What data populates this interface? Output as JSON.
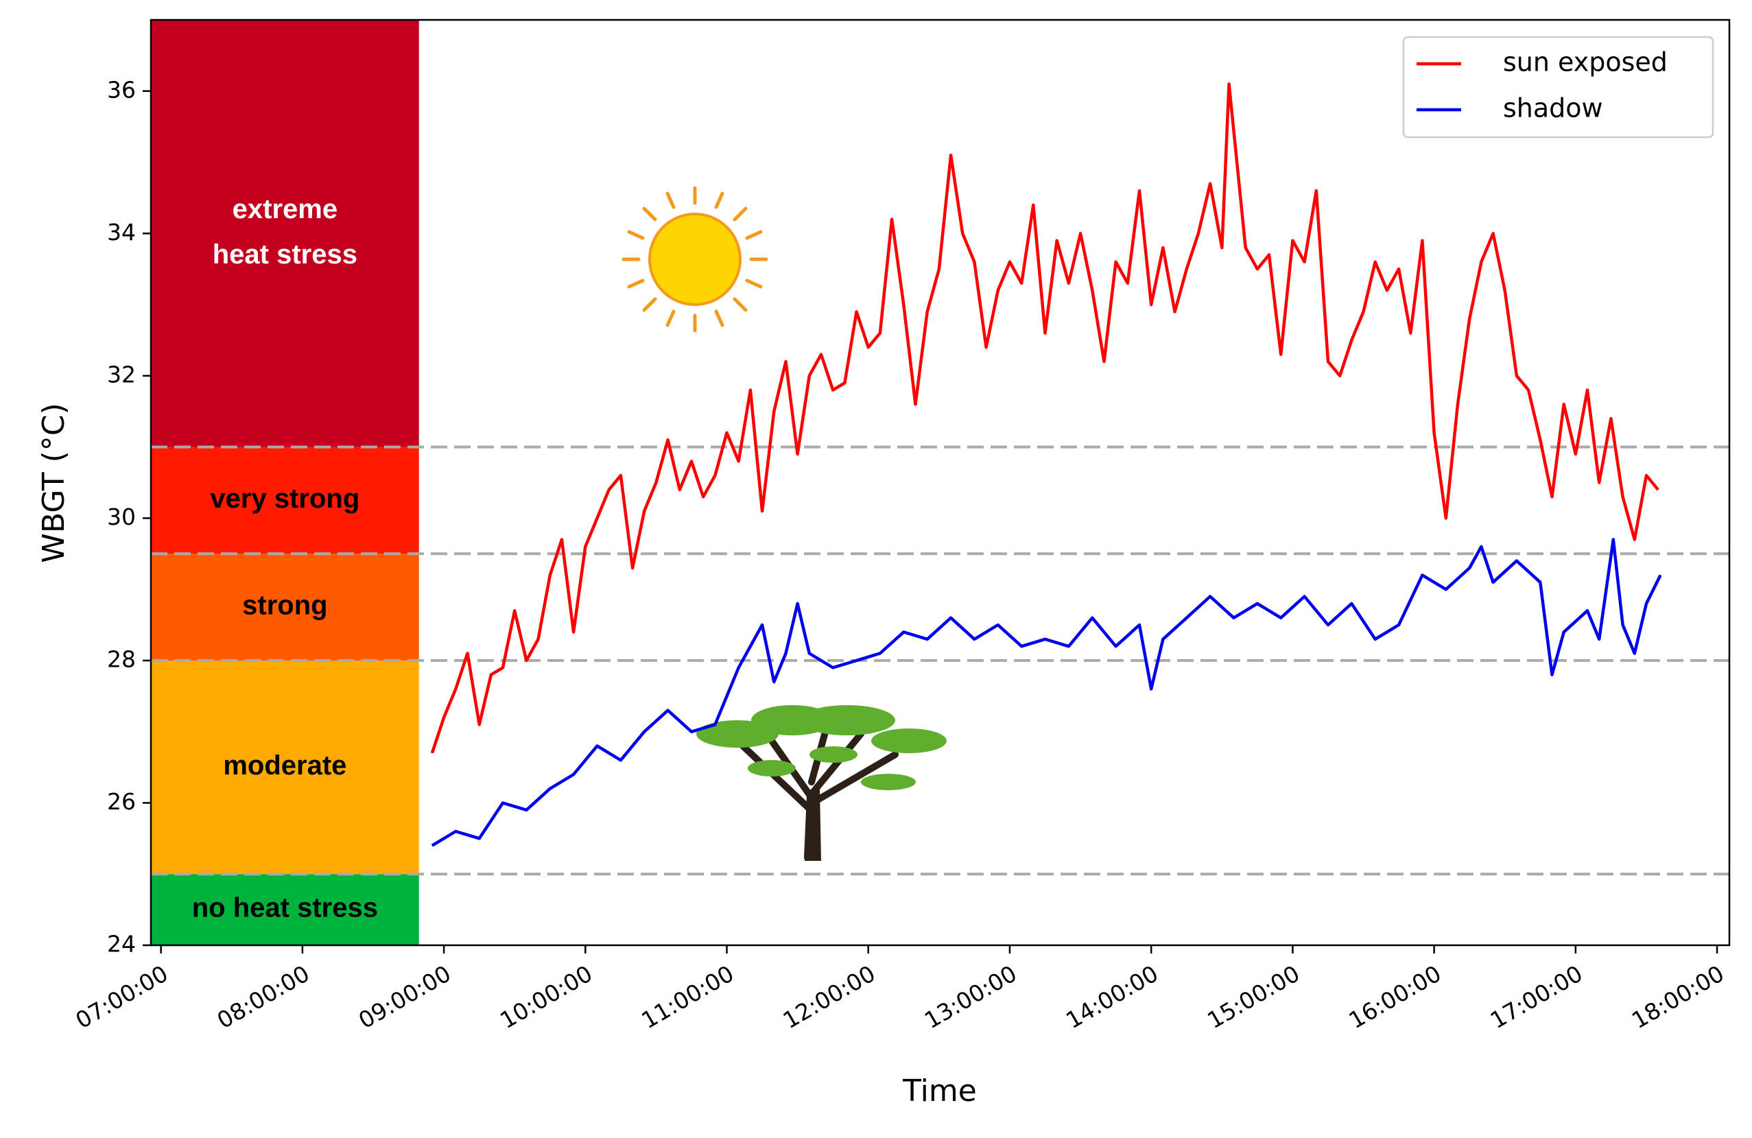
{
  "chart_data": {
    "type": "line",
    "xlabel": "Time",
    "ylabel": "WBGT (°C)",
    "xlim": [
      "06:55:44",
      "18:05:13"
    ],
    "xticks": [
      "07:00:00",
      "08:00:00",
      "09:00:00",
      "10:00:00",
      "11:00:00",
      "12:00:00",
      "13:00:00",
      "14:00:00",
      "15:00:00",
      "16:00:00",
      "17:00:00",
      "18:00:00"
    ],
    "ylim": [
      24,
      37
    ],
    "yticks": [
      24,
      26,
      28,
      30,
      32,
      34,
      36
    ],
    "legend": "upper right",
    "bands_end": "08:49:25",
    "bands": [
      {
        "label_lines": [
          "no heat stress"
        ],
        "lower": 24,
        "upper": 25,
        "color": "#00b33c",
        "text_color": "#000000"
      },
      {
        "label_lines": [
          "moderate"
        ],
        "lower": 25,
        "upper": 28,
        "color": "#ffaa00",
        "text_color": "#000000"
      },
      {
        "label_lines": [
          "strong"
        ],
        "lower": 28,
        "upper": 29.5,
        "color": "#ff5a00",
        "text_color": "#000000"
      },
      {
        "label_lines": [
          "very strong"
        ],
        "lower": 29.5,
        "upper": 31,
        "color": "#ff1a00",
        "text_color": "#000000"
      },
      {
        "label_lines": [
          "extreme",
          "heat stress"
        ],
        "lower": 31,
        "upper": 37,
        "color": "#c4001e",
        "text_color": "#ffffff"
      }
    ],
    "series": [
      {
        "name": "sun exposed",
        "color": "#ff0000",
        "x": [
          "08:55:00",
          "09:00:00",
          "09:05:00",
          "09:10:00",
          "09:15:00",
          "09:20:00",
          "09:25:00",
          "09:30:00",
          "09:35:00",
          "09:40:00",
          "09:45:00",
          "09:50:00",
          "09:55:00",
          "10:00:00",
          "10:05:00",
          "10:10:00",
          "10:15:00",
          "10:20:00",
          "10:25:00",
          "10:30:00",
          "10:35:00",
          "10:40:00",
          "10:45:00",
          "10:50:00",
          "10:55:00",
          "11:00:00",
          "11:05:00",
          "11:10:00",
          "11:15:00",
          "11:20:00",
          "11:25:00",
          "11:30:00",
          "11:35:00",
          "11:40:00",
          "11:45:00",
          "11:50:00",
          "11:55:00",
          "12:00:00",
          "12:05:00",
          "12:10:00",
          "12:15:00",
          "12:20:00",
          "12:25:00",
          "12:30:00",
          "12:35:00",
          "12:40:00",
          "12:45:00",
          "12:50:00",
          "12:55:00",
          "13:00:00",
          "13:05:00",
          "13:10:00",
          "13:15:00",
          "13:20:00",
          "13:25:00",
          "13:30:00",
          "13:35:00",
          "13:40:00",
          "13:45:00",
          "13:50:00",
          "13:55:00",
          "14:00:00",
          "14:05:00",
          "14:10:00",
          "14:15:00",
          "14:20:00",
          "14:25:00",
          "14:30:00",
          "14:33:00",
          "14:40:00",
          "14:45:00",
          "14:50:00",
          "14:55:00",
          "15:00:00",
          "15:05:00",
          "15:10:00",
          "15:15:00",
          "15:20:00",
          "15:25:00",
          "15:30:00",
          "15:35:00",
          "15:40:00",
          "15:45:00",
          "15:50:00",
          "15:55:00",
          "16:00:00",
          "16:05:00",
          "16:10:00",
          "16:15:00",
          "16:20:00",
          "16:25:00",
          "16:30:00",
          "16:35:00",
          "16:40:00",
          "16:45:00",
          "16:50:00",
          "16:55:00",
          "17:00:00",
          "17:05:00",
          "17:10:00",
          "17:15:00",
          "17:20:00",
          "17:25:00",
          "17:30:00",
          "17:35:00"
        ],
        "values": [
          26.7,
          27.2,
          27.6,
          28.1,
          27.1,
          27.8,
          27.9,
          28.7,
          28.0,
          28.3,
          29.2,
          29.7,
          28.4,
          29.6,
          30.0,
          30.4,
          30.6,
          29.3,
          30.1,
          30.5,
          31.1,
          30.4,
          30.8,
          30.3,
          30.6,
          31.2,
          30.8,
          31.8,
          30.1,
          31.5,
          32.2,
          30.9,
          32.0,
          32.3,
          31.8,
          31.9,
          32.9,
          32.4,
          32.6,
          34.2,
          33.0,
          31.6,
          32.9,
          33.5,
          35.1,
          34.0,
          33.6,
          32.4,
          33.2,
          33.6,
          33.3,
          34.4,
          32.6,
          33.9,
          33.3,
          34.0,
          33.2,
          32.2,
          33.6,
          33.3,
          34.6,
          33.0,
          33.8,
          32.9,
          33.5,
          34.0,
          34.7,
          33.8,
          36.1,
          33.8,
          33.5,
          33.7,
          32.3,
          33.9,
          33.6,
          34.6,
          32.2,
          32.0,
          32.5,
          32.9,
          33.6,
          33.2,
          33.5,
          32.6,
          33.9,
          31.2,
          30.0,
          31.6,
          32.8,
          33.6,
          34.0,
          33.2,
          32.0,
          31.8,
          31.1,
          30.3,
          31.6,
          30.9,
          31.8,
          30.5,
          31.4,
          30.3,
          29.7,
          30.6,
          30.4
        ]
      },
      {
        "name": "shadow",
        "color": "#0000ee",
        "x": [
          "08:55:00",
          "09:05:00",
          "09:15:00",
          "09:25:00",
          "09:35:00",
          "09:45:00",
          "09:55:00",
          "10:05:00",
          "10:15:00",
          "10:25:00",
          "10:35:00",
          "10:45:00",
          "10:55:00",
          "11:05:00",
          "11:15:00",
          "11:20:00",
          "11:25:00",
          "11:30:00",
          "11:35:00",
          "11:45:00",
          "11:55:00",
          "12:05:00",
          "12:15:00",
          "12:25:00",
          "12:35:00",
          "12:45:00",
          "12:55:00",
          "13:05:00",
          "13:15:00",
          "13:25:00",
          "13:35:00",
          "13:45:00",
          "13:55:00",
          "14:00:00",
          "14:05:00",
          "14:15:00",
          "14:25:00",
          "14:35:00",
          "14:45:00",
          "14:55:00",
          "15:05:00",
          "15:15:00",
          "15:25:00",
          "15:35:00",
          "15:45:00",
          "15:55:00",
          "16:05:00",
          "16:15:00",
          "16:20:00",
          "16:25:00",
          "16:35:00",
          "16:45:00",
          "16:50:00",
          "16:55:00",
          "17:05:00",
          "17:10:00",
          "17:16:00",
          "17:20:00",
          "17:25:00",
          "17:30:00",
          "17:36:00"
        ],
        "values": [
          25.4,
          25.6,
          25.5,
          26.0,
          25.9,
          26.2,
          26.4,
          26.8,
          26.6,
          27.0,
          27.3,
          27.0,
          27.1,
          27.9,
          28.5,
          27.7,
          28.1,
          28.8,
          28.1,
          27.9,
          28.0,
          28.1,
          28.4,
          28.3,
          28.6,
          28.3,
          28.5,
          28.2,
          28.3,
          28.2,
          28.6,
          28.2,
          28.5,
          27.6,
          28.3,
          28.6,
          28.9,
          28.6,
          28.8,
          28.6,
          28.9,
          28.5,
          28.8,
          28.3,
          28.5,
          29.2,
          29.0,
          29.3,
          29.6,
          29.1,
          29.4,
          29.1,
          27.8,
          28.4,
          28.7,
          28.3,
          29.7,
          28.5,
          28.1,
          28.8,
          29.2
        ]
      }
    ]
  }
}
